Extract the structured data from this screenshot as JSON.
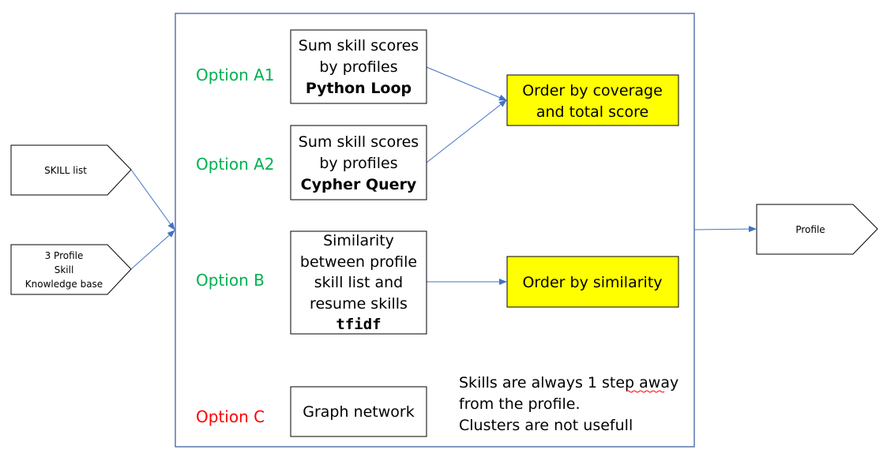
{
  "inputs": {
    "skill_list": "SKILL list",
    "profile_kb": [
      "3 Profile",
      "Skill",
      "Knowledge base"
    ]
  },
  "output": {
    "profile": "Profile"
  },
  "options": {
    "a1": {
      "label": "Option A1",
      "box": [
        "Sum skill scores",
        "by profiles"
      ],
      "method": "Python Loop"
    },
    "a2": {
      "label": "Option A2",
      "box": [
        "Sum skill scores",
        "by profiles"
      ],
      "method": "Cypher Query"
    },
    "b": {
      "label": "Option B",
      "box": [
        "Similarity",
        "between profile",
        "skill list and",
        "resume skills"
      ],
      "method": "tfidf"
    },
    "c": {
      "label": "Option C",
      "box": "Graph network"
    }
  },
  "results": {
    "coverage": [
      "Order by coverage",
      "and total score"
    ],
    "similarity": "Order by similarity"
  },
  "note": {
    "lines": [
      "Skills are always 1 step away",
      "from the profile.",
      "Clusters are not usefull"
    ]
  },
  "colors": {
    "option_green": "#00b050",
    "option_red": "#ff0000",
    "highlight_fill": "#ffff00",
    "arrow": "#4472c4",
    "frame_border": "#2f5597"
  }
}
